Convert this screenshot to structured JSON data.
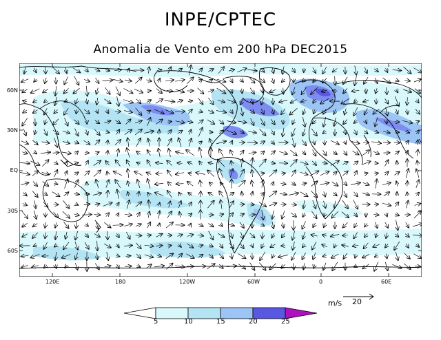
{
  "header": {
    "title": "INPE/CPTEC",
    "subtitle": "Anomalia de Vento em 200 hPa DEC2015"
  },
  "map": {
    "lat_labels": [
      "60N",
      "30N",
      "EQ",
      "30S",
      "60S"
    ],
    "lon_labels": [
      "120E",
      "180",
      "120W",
      "60W",
      "0",
      "60E"
    ],
    "shading_colors": [
      "#ffffff",
      "#d8f8fc",
      "#b4e4f4",
      "#9cc4f4",
      "#7c8cf0",
      "#5858e0",
      "#b010c0"
    ]
  },
  "legend": {
    "labels": [
      "5",
      "10",
      "15",
      "20",
      "25"
    ]
  },
  "reference_vector": {
    "unit": "m/s",
    "speed": "20"
  }
}
